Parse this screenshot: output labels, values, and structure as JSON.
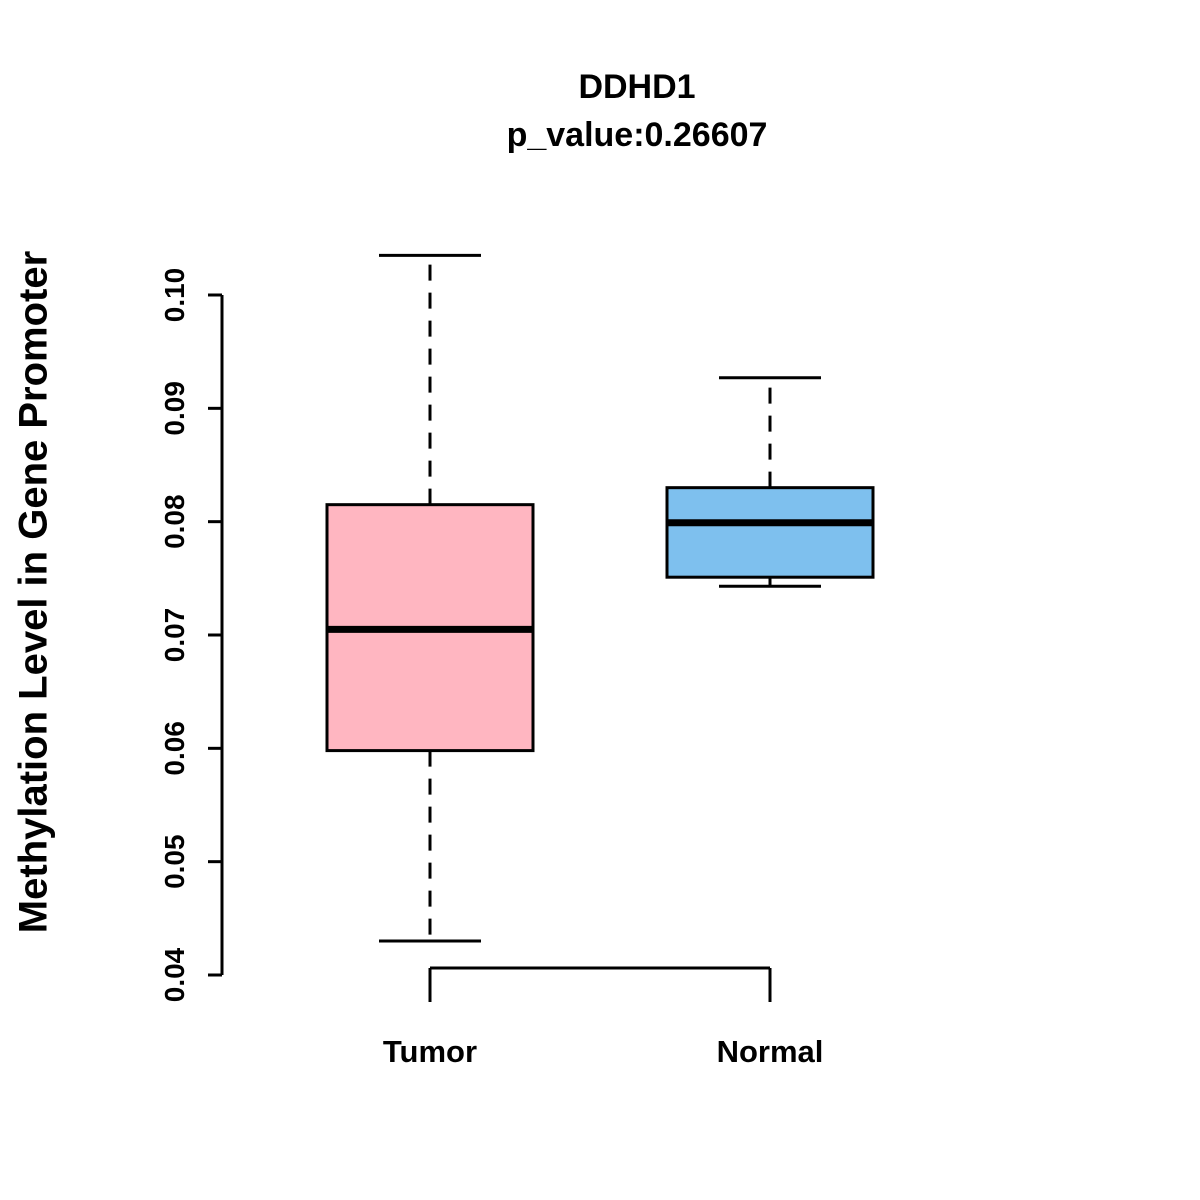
{
  "chart_data": {
    "type": "boxplot",
    "title": "DDHD1",
    "subtitle": "p_value:0.26607",
    "ylabel": "Methylation Level in Gene Promoter",
    "xlabel": "",
    "ylim": [
      0.0375,
      0.105
    ],
    "yticks": [
      0.04,
      0.05,
      0.06,
      0.07,
      0.08,
      0.09,
      0.1
    ],
    "grid": false,
    "legend": null,
    "categories": [
      "Tumor",
      "Normal"
    ],
    "groups": [
      {
        "name": "Tumor",
        "color": "#FFB6C1",
        "whisker_low": 0.043,
        "q1": 0.0598,
        "median": 0.0705,
        "q3": 0.0815,
        "whisker_high": 0.1035
      },
      {
        "name": "Normal",
        "color": "#7EC0EE",
        "whisker_low": 0.0743,
        "q1": 0.0751,
        "median": 0.0799,
        "q3": 0.083,
        "whisker_high": 0.0927
      }
    ]
  }
}
